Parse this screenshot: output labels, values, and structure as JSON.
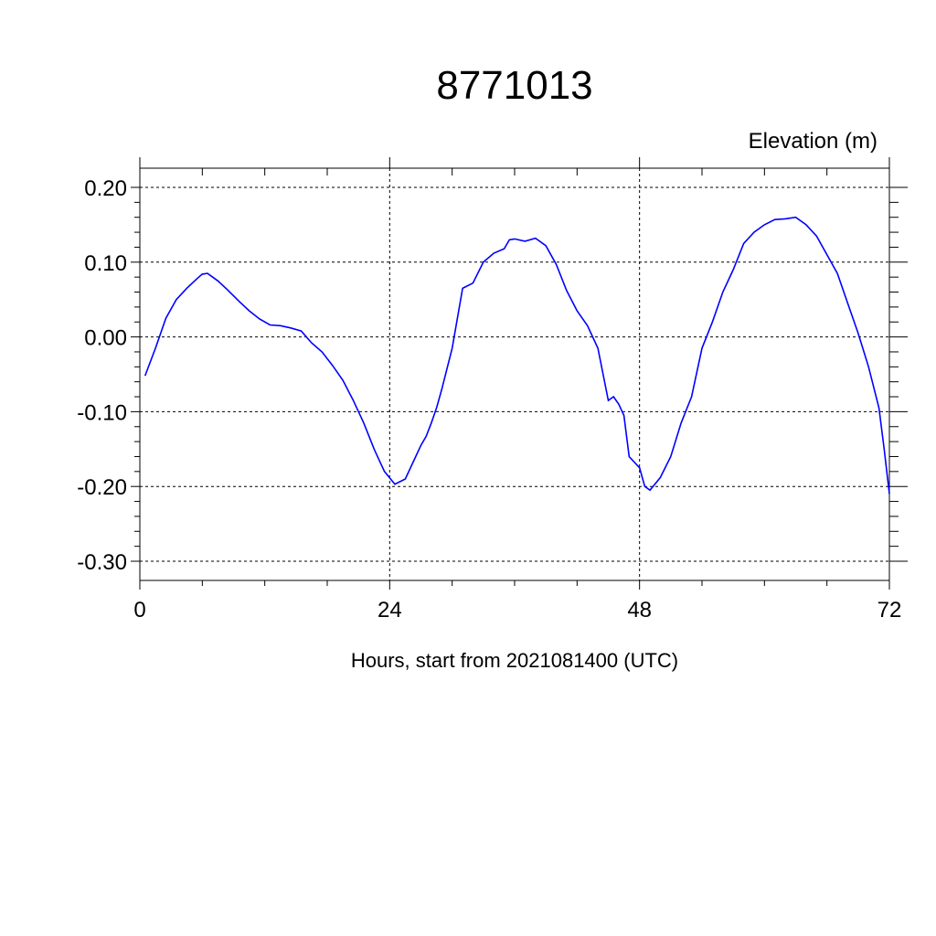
{
  "chart_data": {
    "type": "line",
    "title": "8771013",
    "units_label": "Elevation (m)",
    "xlabel": "Hours, start from 2021081400 (UTC)",
    "xlim": [
      0,
      72
    ],
    "ylim": [
      -0.3,
      0.2
    ],
    "x_ticks": [
      0,
      24,
      48,
      72
    ],
    "x_tick_labels": [
      "0",
      "24",
      "48",
      "72"
    ],
    "y_ticks": [
      0.2,
      0.1,
      0.0,
      -0.1,
      -0.2,
      -0.3
    ],
    "y_tick_labels": [
      "0.20",
      "0.10",
      "0.00",
      "-0.10",
      "-0.20",
      "-0.30"
    ],
    "grid": true,
    "series": [
      {
        "color": "#0000ff",
        "x": [
          0.5,
          1.5,
          2.5,
          3.5,
          4.5,
          5.5,
          6.0,
          6.5,
          7.5,
          8.5,
          9.5,
          10.5,
          11.5,
          12.5,
          13.5,
          14.5,
          15.5,
          16.5,
          17.5,
          18.5,
          19.5,
          20.5,
          21.5,
          22.5,
          23.0,
          23.5,
          24.5,
          25.5,
          26.5,
          27.0,
          27.5,
          28.0,
          28.5,
          29.0,
          30.0,
          31.0,
          32.0,
          33.0,
          34.0,
          35.0,
          35.5,
          36.0,
          37.0,
          38.0,
          39.0,
          40.0,
          41.0,
          42.0,
          43.0,
          44.0,
          44.5,
          45.0,
          45.5,
          46.0,
          46.5,
          47.0,
          48.0,
          48.5,
          49.0,
          50.0,
          51.0,
          52.0,
          53.0,
          54.0,
          55.0,
          56.0,
          57.0,
          58.0,
          59.0,
          60.0,
          61.0,
          62.0,
          63.0,
          64.0,
          65.0,
          66.0,
          67.0,
          68.0,
          69.0,
          70.0,
          71.0,
          71.5,
          72.0
        ],
        "y": [
          -0.052,
          -0.015,
          0.025,
          0.05,
          0.065,
          0.078,
          0.084,
          0.085,
          0.075,
          0.062,
          0.048,
          0.035,
          0.024,
          0.016,
          0.015,
          0.012,
          0.008,
          -0.008,
          -0.02,
          -0.038,
          -0.058,
          -0.085,
          -0.115,
          -0.15,
          -0.165,
          -0.18,
          -0.197,
          -0.19,
          -0.16,
          -0.145,
          -0.133,
          -0.115,
          -0.095,
          -0.07,
          -0.015,
          0.065,
          0.072,
          0.1,
          0.112,
          0.118,
          0.13,
          0.131,
          0.128,
          0.132,
          0.122,
          0.097,
          0.062,
          0.035,
          0.015,
          -0.015,
          -0.05,
          -0.085,
          -0.08,
          -0.09,
          -0.105,
          -0.16,
          -0.175,
          -0.2,
          -0.205,
          -0.188,
          -0.16,
          -0.115,
          -0.08,
          -0.015,
          0.02,
          0.06,
          0.09,
          0.125,
          0.14,
          0.15,
          0.157,
          0.158,
          0.16,
          0.15,
          0.135,
          0.11,
          0.085,
          0.045,
          0.005,
          -0.04,
          -0.095,
          -0.15,
          -0.21
        ]
      }
    ]
  }
}
